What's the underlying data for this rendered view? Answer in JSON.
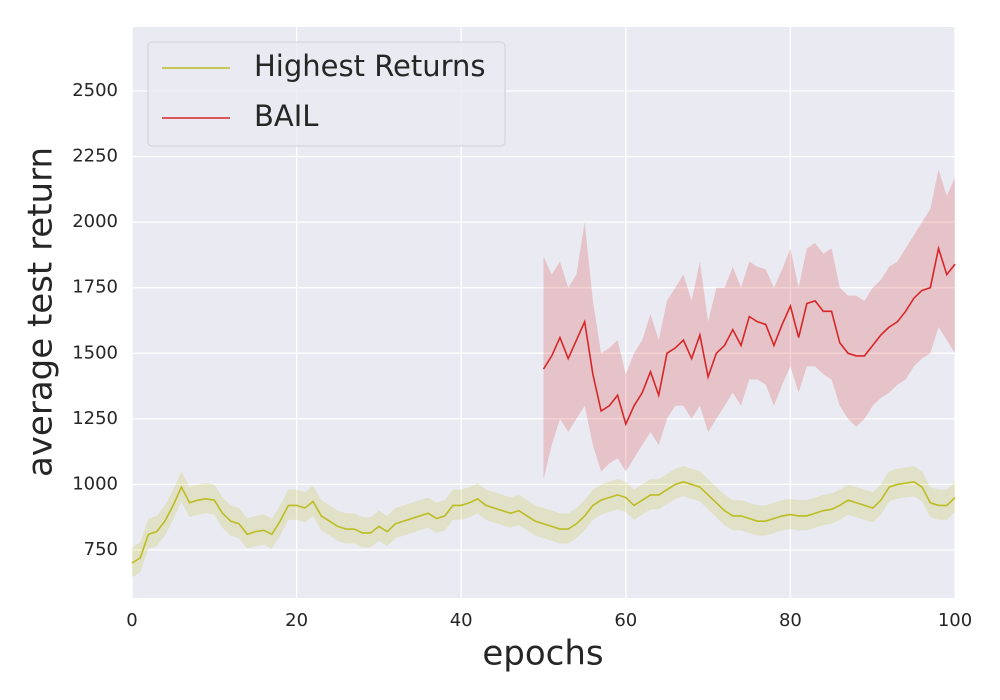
{
  "chart_data": {
    "type": "line",
    "xlabel": "epochs",
    "ylabel": "average test return",
    "xlim": [
      0,
      100
    ],
    "ylim": [
      567,
      2744
    ],
    "xticks": [
      0,
      20,
      40,
      60,
      80,
      100
    ],
    "yticks": [
      750,
      1000,
      1250,
      1500,
      1750,
      2000,
      2250,
      2500
    ],
    "grid": true,
    "legend": "upper left",
    "background": "#eaeaf2",
    "series": [
      {
        "name": "Highest Returns",
        "color": "#bcbd22",
        "x": [
          0,
          1,
          2,
          3,
          4,
          5,
          6,
          7,
          8,
          9,
          10,
          11,
          12,
          13,
          14,
          15,
          16,
          17,
          18,
          19,
          20,
          21,
          22,
          23,
          24,
          25,
          26,
          27,
          28,
          29,
          30,
          31,
          32,
          33,
          34,
          35,
          36,
          37,
          38,
          39,
          40,
          41,
          42,
          43,
          44,
          45,
          46,
          47,
          48,
          49,
          50,
          51,
          52,
          53,
          54,
          55,
          56,
          57,
          58,
          59,
          60,
          61,
          62,
          63,
          64,
          65,
          66,
          67,
          68,
          69,
          70,
          71,
          72,
          73,
          74,
          75,
          76,
          77,
          78,
          79,
          80,
          81,
          82,
          83,
          84,
          85,
          86,
          87,
          88,
          89,
          90,
          91,
          92,
          93,
          94,
          95,
          96,
          97,
          98,
          99,
          100
        ],
        "values": [
          700,
          720,
          810,
          820,
          860,
          920,
          990,
          930,
          940,
          945,
          940,
          890,
          860,
          850,
          810,
          820,
          825,
          810,
          860,
          920,
          920,
          910,
          935,
          880,
          860,
          840,
          830,
          830,
          815,
          815,
          840,
          820,
          850,
          860,
          870,
          880,
          890,
          870,
          880,
          920,
          920,
          930,
          945,
          920,
          910,
          900,
          890,
          900,
          880,
          860,
          850,
          840,
          830,
          830,
          850,
          880,
          920,
          940,
          950,
          960,
          950,
          920,
          940,
          960,
          960,
          980,
          1000,
          1010,
          1000,
          990,
          960,
          930,
          900,
          880,
          880,
          870,
          860,
          860,
          870,
          880,
          885,
          880,
          880,
          890,
          900,
          905,
          920,
          940,
          930,
          920,
          910,
          940,
          990,
          1000,
          1005,
          1010,
          990,
          930,
          920,
          920,
          950
        ],
        "lower": [
          645,
          665,
          755,
          765,
          805,
          865,
          935,
          875,
          885,
          890,
          885,
          835,
          805,
          795,
          755,
          765,
          770,
          755,
          805,
          865,
          865,
          855,
          880,
          825,
          805,
          785,
          775,
          775,
          760,
          760,
          785,
          765,
          795,
          805,
          815,
          825,
          835,
          815,
          825,
          865,
          865,
          875,
          890,
          865,
          855,
          845,
          835,
          845,
          825,
          805,
          795,
          785,
          775,
          775,
          795,
          825,
          865,
          885,
          895,
          905,
          895,
          865,
          885,
          905,
          905,
          925,
          945,
          955,
          945,
          935,
          905,
          875,
          845,
          825,
          825,
          815,
          805,
          805,
          815,
          825,
          830,
          825,
          825,
          835,
          845,
          850,
          865,
          885,
          875,
          865,
          855,
          885,
          935,
          945,
          950,
          955,
          935,
          875,
          865,
          865,
          895
        ],
        "upper": [
          760,
          780,
          870,
          880,
          920,
          980,
          1050,
          990,
          1000,
          1005,
          1000,
          950,
          920,
          910,
          870,
          880,
          885,
          870,
          920,
          980,
          980,
          970,
          995,
          940,
          920,
          900,
          890,
          890,
          875,
          875,
          900,
          880,
          910,
          920,
          930,
          940,
          950,
          930,
          940,
          980,
          980,
          990,
          1005,
          980,
          970,
          960,
          950,
          960,
          940,
          920,
          910,
          900,
          890,
          890,
          910,
          940,
          980,
          1000,
          1010,
          1020,
          1010,
          980,
          1000,
          1020,
          1020,
          1040,
          1060,
          1070,
          1060,
          1050,
          1020,
          990,
          960,
          940,
          940,
          930,
          920,
          920,
          930,
          940,
          945,
          940,
          940,
          950,
          960,
          965,
          980,
          1000,
          990,
          980,
          970,
          1000,
          1050,
          1060,
          1065,
          1070,
          1050,
          990,
          980,
          980,
          1010
        ]
      },
      {
        "name": "BAIL",
        "color": "#d62728",
        "x": [
          50,
          51,
          52,
          53,
          54,
          55,
          56,
          57,
          58,
          59,
          60,
          61,
          62,
          63,
          64,
          65,
          66,
          67,
          68,
          69,
          70,
          71,
          72,
          73,
          74,
          75,
          76,
          77,
          78,
          79,
          80,
          81,
          82,
          83,
          84,
          85,
          86,
          87,
          88,
          89,
          90,
          91,
          92,
          93,
          94,
          95,
          96,
          97,
          98,
          99,
          100
        ],
        "values": [
          1440,
          1490,
          1560,
          1480,
          1550,
          1620,
          1420,
          1280,
          1300,
          1340,
          1230,
          1300,
          1350,
          1430,
          1340,
          1500,
          1520,
          1550,
          1480,
          1570,
          1410,
          1500,
          1530,
          1590,
          1530,
          1640,
          1620,
          1610,
          1530,
          1610,
          1680,
          1560,
          1690,
          1700,
          1660,
          1660,
          1540,
          1500,
          1490,
          1490,
          1530,
          1570,
          1600,
          1620,
          1660,
          1710,
          1740,
          1750,
          1900,
          1800,
          1840
        ],
        "lower": [
          1020,
          1150,
          1250,
          1200,
          1250,
          1300,
          1150,
          1050,
          1080,
          1100,
          1050,
          1100,
          1150,
          1200,
          1150,
          1250,
          1300,
          1300,
          1250,
          1300,
          1200,
          1250,
          1300,
          1350,
          1300,
          1400,
          1400,
          1380,
          1300,
          1380,
          1450,
          1350,
          1450,
          1450,
          1420,
          1400,
          1300,
          1250,
          1220,
          1250,
          1300,
          1330,
          1350,
          1380,
          1400,
          1450,
          1480,
          1500,
          1600,
          1550,
          1500
        ],
        "upper": [
          1870,
          1800,
          1850,
          1750,
          1800,
          2000,
          1700,
          1500,
          1520,
          1550,
          1420,
          1500,
          1550,
          1650,
          1550,
          1700,
          1750,
          1800,
          1700,
          1850,
          1620,
          1750,
          1750,
          1830,
          1750,
          1850,
          1830,
          1820,
          1750,
          1820,
          1900,
          1750,
          1900,
          1920,
          1880,
          1900,
          1750,
          1720,
          1720,
          1700,
          1750,
          1780,
          1830,
          1850,
          1900,
          1950,
          2000,
          2050,
          2200,
          2100,
          2170
        ]
      }
    ]
  }
}
